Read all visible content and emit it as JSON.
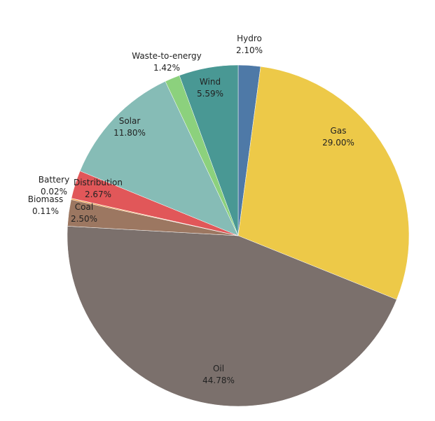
{
  "chart_data": {
    "type": "pie",
    "title": "",
    "slices": [
      {
        "label": "Hydro",
        "value": 2.1,
        "value_label": "2.10%",
        "color": "#4e79a7"
      },
      {
        "label": "Gas",
        "value": 29.0,
        "value_label": "29.00%",
        "color": "#edc948"
      },
      {
        "label": "Oil",
        "value": 44.78,
        "value_label": "44.78%",
        "color": "#7b706c"
      },
      {
        "label": "Coal",
        "value": 2.5,
        "value_label": "2.50%",
        "color": "#9c7761"
      },
      {
        "label": "Biomass",
        "value": 0.11,
        "value_label": "0.11%",
        "color": "#f28e2b"
      },
      {
        "label": "Battery",
        "value": 0.02,
        "value_label": "0.02%",
        "color": "#b07aa1"
      },
      {
        "label": "Distribution",
        "value": 2.67,
        "value_label": "2.67%",
        "color": "#e15759"
      },
      {
        "label": "Solar",
        "value": 11.8,
        "value_label": "11.80%",
        "color": "#86bcb6"
      },
      {
        "label": "Waste-to-energy",
        "value": 1.42,
        "value_label": "1.42%",
        "color": "#8cd17d"
      },
      {
        "label": "Wind",
        "value": 5.59,
        "value_label": "5.59%",
        "color": "#499894"
      }
    ],
    "start": "12 o'clock",
    "direction": "clockwise",
    "legend": "none"
  }
}
